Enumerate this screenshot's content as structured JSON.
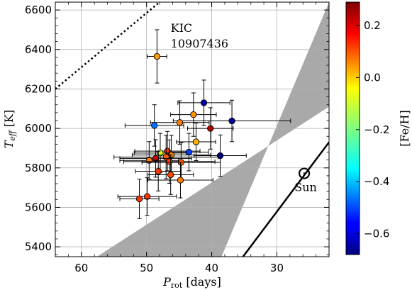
{
  "chart_data": {
    "type": "scatter",
    "x_axis": {
      "label_main": "P",
      "label_sub": "rot",
      "label_rest": " [days]",
      "range": [
        64,
        22
      ],
      "ticks": [
        60,
        50,
        40,
        30
      ],
      "minor_step": 2,
      "inverted": true
    },
    "y_axis": {
      "label_main": "T",
      "label_sub": "eff",
      "label_rest": " [K]",
      "range": [
        5350,
        6640
      ],
      "ticks": [
        5400,
        5600,
        5800,
        6000,
        6200,
        6400,
        6600
      ],
      "minor_step": 40
    },
    "grid": true,
    "colorbar": {
      "label": "[Fe/H]",
      "range": [
        -0.68,
        0.29
      ],
      "ticks": [
        -0.6,
        -0.4,
        -0.2,
        0.0,
        0.2
      ],
      "tick_labels": [
        "−0.6",
        "−0.4",
        "−0.2",
        "0.0",
        "0.2"
      ],
      "colormap": "jet"
    },
    "gray_band": {
      "upper_edge": [
        [
          57.6,
          5350
        ],
        [
          22,
          6110
        ]
      ],
      "lower_edge": [
        [
          38.5,
          5350
        ],
        [
          22,
          6640
        ]
      ],
      "color": "#a9a9a9"
    },
    "dotted_line": [
      [
        64,
        6200
      ],
      [
        48,
        6640
      ]
    ],
    "solid_line": [
      [
        35.2,
        5350
      ],
      [
        22,
        5930
      ]
    ],
    "sun": {
      "x": 25.8,
      "y": 5772,
      "label": "Sun"
    },
    "annotation": {
      "lines": [
        "KIC",
        "10907436"
      ],
      "x": 46.3,
      "y": 6460
    },
    "points": [
      {
        "x": 48.4,
        "y": 6365,
        "xerr": 1.5,
        "yerr": 135,
        "feh": 0.02
      },
      {
        "x": 41.2,
        "y": 6130,
        "xerr": 4.0,
        "yerr": 115,
        "feh": -0.64
      },
      {
        "x": 42.8,
        "y": 6070,
        "xerr": 3.5,
        "yerr": 110,
        "feh": 0.03
      },
      {
        "x": 36.9,
        "y": 6038,
        "xerr": 9.0,
        "yerr": 105,
        "feh": -0.66
      },
      {
        "x": 44.9,
        "y": 6030,
        "xerr": 4.5,
        "yerr": 110,
        "feh": 0.05
      },
      {
        "x": 48.8,
        "y": 6015,
        "xerr": 4.5,
        "yerr": 105,
        "feh": -0.45
      },
      {
        "x": 40.2,
        "y": 6000,
        "xerr": 3.5,
        "yerr": 105,
        "feh": 0.25
      },
      {
        "x": 42.4,
        "y": 5932,
        "xerr": 3.0,
        "yerr": 95,
        "feh": 0.0
      },
      {
        "x": 46.8,
        "y": 5885,
        "xerr": 5.0,
        "yerr": 100,
        "feh": 0.12
      },
      {
        "x": 43.5,
        "y": 5880,
        "xerr": 3.0,
        "yerr": 95,
        "feh": -0.5
      },
      {
        "x": 47.9,
        "y": 5875,
        "xerr": 4.0,
        "yerr": 100,
        "feh": -0.1
      },
      {
        "x": 46.2,
        "y": 5865,
        "xerr": 6.0,
        "yerr": 100,
        "feh": 0.04
      },
      {
        "x": 38.7,
        "y": 5862,
        "xerr": 4.0,
        "yerr": 105,
        "feh": -0.68
      },
      {
        "x": 47.0,
        "y": 5855,
        "xerr": 8.0,
        "yerr": 110,
        "feh": 0.08
      },
      {
        "x": 48.6,
        "y": 5848,
        "xerr": 5.5,
        "yerr": 95,
        "feh": 0.22
      },
      {
        "x": 49.6,
        "y": 5838,
        "xerr": 4.5,
        "yerr": 95,
        "feh": 0.05
      },
      {
        "x": 46.5,
        "y": 5832,
        "xerr": 7.0,
        "yerr": 110,
        "feh": 0.1
      },
      {
        "x": 44.7,
        "y": 5828,
        "xerr": 6.0,
        "yerr": 100,
        "feh": 0.08
      },
      {
        "x": 48.2,
        "y": 5783,
        "xerr": 3.5,
        "yerr": 100,
        "feh": 0.12
      },
      {
        "x": 46.3,
        "y": 5765,
        "xerr": 3.5,
        "yerr": 100,
        "feh": 0.1
      },
      {
        "x": 44.8,
        "y": 5738,
        "xerr": 5.0,
        "yerr": 90,
        "feh": 0.05
      },
      {
        "x": 49.9,
        "y": 5655,
        "xerr": 4.5,
        "yerr": 95,
        "feh": 0.12
      },
      {
        "x": 51.1,
        "y": 5643,
        "xerr": 3.0,
        "yerr": 100,
        "feh": 0.12
      }
    ]
  }
}
